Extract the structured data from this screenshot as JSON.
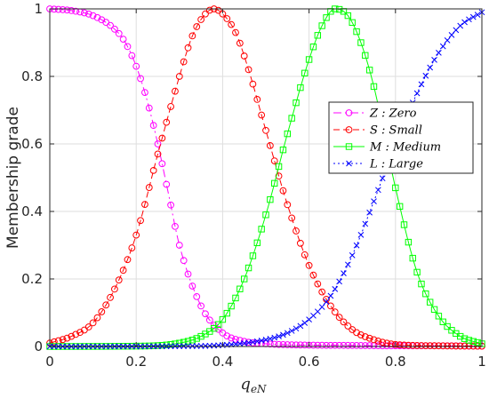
{
  "chart_data": {
    "type": "line",
    "title": "",
    "xlabel": "q_eN",
    "xlabel_main": "q",
    "xlabel_sub": "eN",
    "ylabel": "Membership grade",
    "xlim": [
      0,
      1
    ],
    "ylim": [
      0,
      1
    ],
    "grid": true,
    "legend_position": "right",
    "x_ticks": [
      "0",
      "0.2",
      "0.4",
      "0.6",
      "0.8",
      "1"
    ],
    "y_ticks": [
      "0",
      "0.2",
      "0.4",
      "0.6",
      "0.8",
      "1"
    ],
    "x_tick_values": [
      0,
      0.2,
      0.4,
      0.6,
      0.8,
      1
    ],
    "y_tick_values": [
      0,
      0.2,
      0.4,
      0.6,
      0.8,
      1
    ],
    "series": [
      {
        "name": "Z : Zero",
        "color": "#ff00ff",
        "line_style": "dash-dot",
        "marker": "circle",
        "x": [
          0,
          0.05,
          0.1,
          0.15,
          0.175,
          0.2,
          0.225,
          0.25,
          0.275,
          0.3,
          0.35,
          0.4,
          0.45,
          0.5,
          0.6,
          0.7,
          0.8,
          0.9,
          1
        ],
        "y": [
          1,
          0.995,
          0.98,
          0.94,
          0.9,
          0.83,
          0.73,
          0.6,
          0.45,
          0.3,
          0.12,
          0.04,
          0.015,
          0.008,
          0.004,
          0.003,
          0.002,
          0.002,
          0.001
        ]
      },
      {
        "name": "S : Small",
        "color": "#ff0000",
        "line_style": "dashed",
        "marker": "circle",
        "x": [
          0,
          0.05,
          0.1,
          0.15,
          0.2,
          0.25,
          0.3,
          0.33,
          0.36,
          0.38,
          0.4,
          0.43,
          0.46,
          0.5,
          0.55,
          0.6,
          0.65,
          0.7,
          0.75,
          0.8,
          0.9,
          1
        ],
        "y": [
          0.01,
          0.03,
          0.07,
          0.17,
          0.33,
          0.57,
          0.8,
          0.92,
          0.985,
          1,
          0.985,
          0.93,
          0.82,
          0.64,
          0.42,
          0.24,
          0.12,
          0.05,
          0.02,
          0.006,
          0.002,
          0.001
        ]
      },
      {
        "name": "M : Medium",
        "color": "#00ff00",
        "line_style": "solid",
        "marker": "square",
        "x": [
          0,
          0.2,
          0.3,
          0.35,
          0.4,
          0.45,
          0.5,
          0.55,
          0.6,
          0.63,
          0.66,
          0.69,
          0.72,
          0.75,
          0.8,
          0.85,
          0.9,
          0.95,
          1
        ],
        "y": [
          0,
          0.001,
          0.01,
          0.03,
          0.08,
          0.2,
          0.39,
          0.63,
          0.85,
          0.95,
          1,
          0.98,
          0.9,
          0.77,
          0.47,
          0.22,
          0.09,
          0.03,
          0.008
        ]
      },
      {
        "name": "L : Large",
        "color": "#0000ff",
        "line_style": "dotted",
        "marker": "x",
        "x": [
          0,
          0.3,
          0.4,
          0.5,
          0.55,
          0.6,
          0.65,
          0.7,
          0.75,
          0.8,
          0.85,
          0.9,
          0.95,
          1
        ],
        "y": [
          0,
          0.001,
          0.004,
          0.02,
          0.04,
          0.08,
          0.15,
          0.27,
          0.43,
          0.6,
          0.75,
          0.87,
          0.95,
          0.99
        ]
      }
    ]
  }
}
